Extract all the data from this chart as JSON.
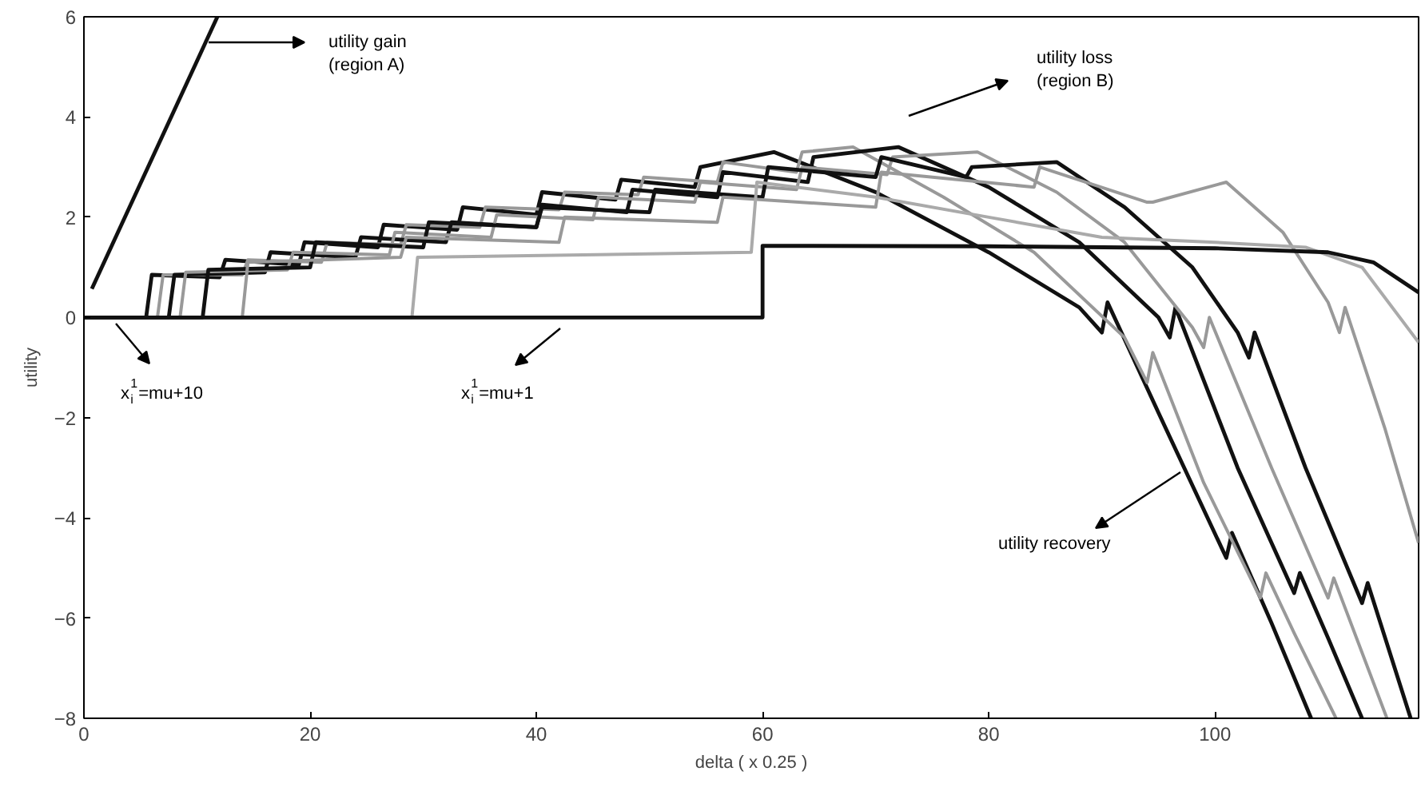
{
  "chart_data": {
    "type": "line",
    "xlabel": "delta ( x 0.25 )",
    "ylabel": "utility",
    "xlim": [
      0,
      118
    ],
    "ylim": [
      -8,
      6
    ],
    "xticks": [
      0,
      20,
      40,
      60,
      80,
      100
    ],
    "yticks": [
      -8,
      -6,
      -4,
      -2,
      0,
      2,
      4,
      6
    ],
    "grid": false,
    "marker": "none",
    "line_style": "solid",
    "annotations": [
      "utility gain\n(region A)",
      "utility loss\n(region B)",
      "utility recovery",
      "x$_{i}$$^{1}$=mu+10",
      "x$_{i}$$^{1}$=mu+1"
    ],
    "series": [
      {
        "color": "#111111",
        "x": [
          0.7,
          11.8
        ],
        "values": [
          0.57,
          6
        ]
      },
      {
        "color": "#111111",
        "x": [
          0,
          5.5,
          6,
          12,
          12.5,
          19,
          19.5,
          26,
          26.5,
          33,
          33.5,
          40,
          40.5,
          47,
          47.5,
          54,
          54.5,
          61,
          70,
          80,
          88,
          90,
          90.5,
          95,
          101,
          101.5,
          105,
          108.5
        ],
        "values": [
          0,
          0,
          0.85,
          0.8,
          1.15,
          1.05,
          1.5,
          1.4,
          1.85,
          1.75,
          2.2,
          2.05,
          2.5,
          2.35,
          2.75,
          2.6,
          3.0,
          3.3,
          2.5,
          1.3,
          0.2,
          -0.3,
          0.3,
          -1.9,
          -4.8,
          -4.3,
          -6.1,
          -8
        ]
      },
      {
        "color": "#999999",
        "x": [
          0,
          6.5,
          7,
          14,
          14.5,
          21,
          21.5,
          28,
          28.5,
          35,
          35.5,
          42,
          42.5,
          49,
          49.5,
          56,
          56.5,
          63,
          63.5,
          68,
          76,
          84,
          92,
          94,
          94.5,
          99,
          104,
          104.5,
          107,
          110.7
        ],
        "values": [
          0,
          0,
          0.85,
          0.85,
          1.15,
          1.1,
          1.5,
          1.45,
          1.85,
          1.8,
          2.2,
          2.15,
          2.5,
          2.45,
          2.8,
          2.7,
          3.1,
          2.9,
          3.3,
          3.4,
          2.4,
          1.3,
          -0.4,
          -1.3,
          -0.7,
          -3.3,
          -5.6,
          -5.1,
          -6.3,
          -8
        ]
      },
      {
        "color": "#111111",
        "x": [
          0,
          7.5,
          8,
          16,
          16.5,
          24,
          24.5,
          32,
          32.5,
          40,
          40.5,
          48,
          48.5,
          56,
          56.5,
          64,
          64.5,
          72,
          80,
          88,
          95,
          96,
          96.5,
          102,
          107,
          107.5,
          110,
          113
        ],
        "values": [
          0,
          0,
          0.85,
          0.9,
          1.3,
          1.2,
          1.6,
          1.5,
          1.9,
          1.8,
          2.25,
          2.1,
          2.55,
          2.4,
          2.9,
          2.7,
          3.2,
          3.4,
          2.6,
          1.5,
          0.0,
          -0.4,
          0.2,
          -3.0,
          -5.5,
          -5.1,
          -6.4,
          -8
        ]
      },
      {
        "color": "#999999",
        "x": [
          0,
          8.5,
          9,
          18,
          18.5,
          27,
          27.5,
          36,
          36.5,
          45,
          45.5,
          54,
          54.5,
          63,
          63.5,
          71,
          71.5,
          79,
          86,
          92,
          98,
          99,
          99.5,
          105,
          110,
          110.5,
          115.2
        ],
        "values": [
          0,
          0,
          0.9,
          0.95,
          1.3,
          1.25,
          1.7,
          1.6,
          2.05,
          1.95,
          2.4,
          2.3,
          2.7,
          2.55,
          3.0,
          2.85,
          3.2,
          3.3,
          2.5,
          1.5,
          -0.2,
          -0.6,
          0.0,
          -3.0,
          -5.6,
          -5.2,
          -8
        ]
      },
      {
        "color": "#111111",
        "x": [
          0,
          10.5,
          11,
          20,
          20.5,
          30,
          30.5,
          40,
          40.5,
          50,
          50.5,
          60,
          60.5,
          70,
          70.5,
          78,
          78.5,
          86,
          92,
          98,
          102,
          103,
          103.5,
          108,
          113,
          113.5,
          117.3
        ],
        "values": [
          0,
          0,
          0.95,
          1.0,
          1.5,
          1.4,
          1.9,
          1.8,
          2.2,
          2.1,
          2.55,
          2.4,
          3.0,
          2.8,
          3.2,
          2.8,
          3.0,
          3.1,
          2.2,
          1.0,
          -0.3,
          -0.8,
          -0.3,
          -3.0,
          -5.7,
          -5.3,
          -8
        ]
      },
      {
        "color": "#999999",
        "x": [
          0,
          14,
          14.5,
          28,
          28.5,
          42,
          42.5,
          56,
          56.5,
          70,
          70.5,
          84,
          84.5,
          94,
          94.5,
          101,
          106,
          110,
          111,
          111.5,
          115,
          118
        ],
        "values": [
          0,
          0,
          1.1,
          1.2,
          1.6,
          1.5,
          2.0,
          1.9,
          2.4,
          2.2,
          2.9,
          2.6,
          3.0,
          2.3,
          2.3,
          2.7,
          1.7,
          0.3,
          -0.3,
          0.2,
          -2.2,
          -4.5
        ]
      },
      {
        "color": "#aaaaaa",
        "x": [
          0,
          29,
          29.5,
          59,
          59.5,
          70,
          80,
          90,
          100,
          108,
          113,
          118
        ],
        "values": [
          0,
          0,
          1.2,
          1.3,
          2.7,
          2.4,
          2.0,
          1.6,
          1.5,
          1.4,
          1.0,
          -0.5
        ]
      },
      {
        "color": "#111111",
        "x": [
          0,
          60,
          60,
          80,
          100,
          110,
          114,
          118
        ],
        "values": [
          0,
          0,
          1.43,
          1.42,
          1.38,
          1.3,
          1.1,
          0.5
        ]
      }
    ]
  }
}
